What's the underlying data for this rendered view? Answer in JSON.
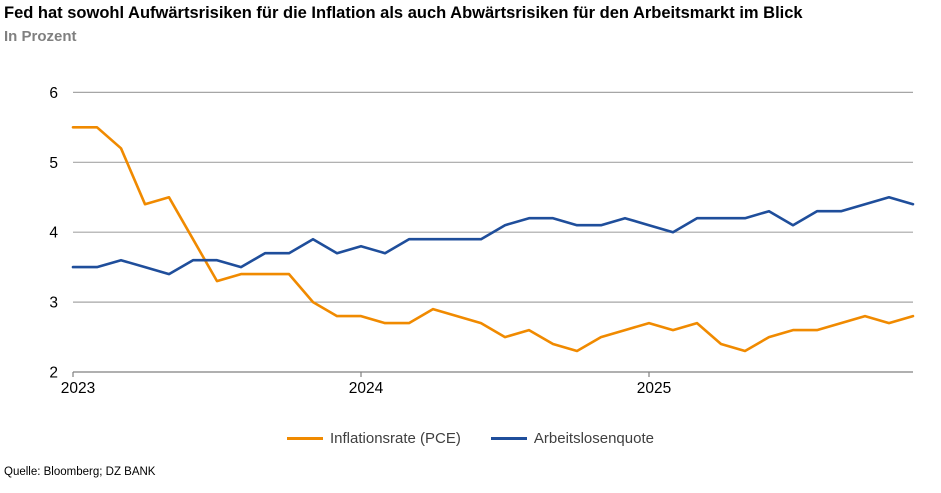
{
  "header": {
    "title": "Fed hat sowohl Aufwärtsrisiken für die Inflation als auch Abwärtsrisiken für den Arbeitsmarkt im Blick",
    "subtitle": "In Prozent"
  },
  "footer": {
    "source": "Quelle: Bloomberg; DZ BANK"
  },
  "colors": {
    "inflation_line": "#F08A00",
    "unemployment_line": "#1F4E9B",
    "gridline": "#A6A6A6",
    "axis": "#808080",
    "tick_label": "#000000"
  },
  "chart_data": {
    "type": "line",
    "title": "Fed hat sowohl Aufwärtsrisiken für die Inflation als auch Abwärtsrisiken für den Arbeitsmarkt im Blick",
    "subtitle_unit": "In Prozent",
    "x_start": "2023-01",
    "x_end": "2025-12",
    "x_frequency": "monthly",
    "x_tick_labels": [
      "2023",
      "2024",
      "2025"
    ],
    "x_tick_indices": [
      0,
      12,
      24
    ],
    "ylim": [
      2,
      6
    ],
    "yticks": [
      2,
      3,
      4,
      5,
      6
    ],
    "grid": "horizontal",
    "legend_position": "bottom-center",
    "series": [
      {
        "name": "Inflationsrate (PCE)",
        "color": "#F08A00",
        "values": [
          5.5,
          5.5,
          5.2,
          4.4,
          4.5,
          3.9,
          3.3,
          3.4,
          3.4,
          3.4,
          3.0,
          2.8,
          2.8,
          2.7,
          2.7,
          2.9,
          2.8,
          2.7,
          2.5,
          2.6,
          2.4,
          2.3,
          2.5,
          2.6,
          2.7,
          2.6,
          2.7,
          2.4,
          2.3,
          2.5,
          2.6,
          2.6,
          2.7,
          2.8,
          2.7,
          2.8
        ]
      },
      {
        "name": "Arbeitslosenquote",
        "color": "#1F4E9B",
        "values": [
          3.5,
          3.5,
          3.6,
          3.5,
          3.4,
          3.6,
          3.6,
          3.5,
          3.7,
          3.7,
          3.9,
          3.7,
          3.8,
          3.7,
          3.9,
          3.9,
          3.9,
          3.9,
          4.1,
          4.2,
          4.2,
          4.1,
          4.1,
          4.2,
          4.1,
          4.0,
          4.2,
          4.2,
          4.2,
          4.3,
          4.1,
          4.3,
          4.3,
          4.4,
          4.5,
          4.4
        ]
      }
    ]
  }
}
